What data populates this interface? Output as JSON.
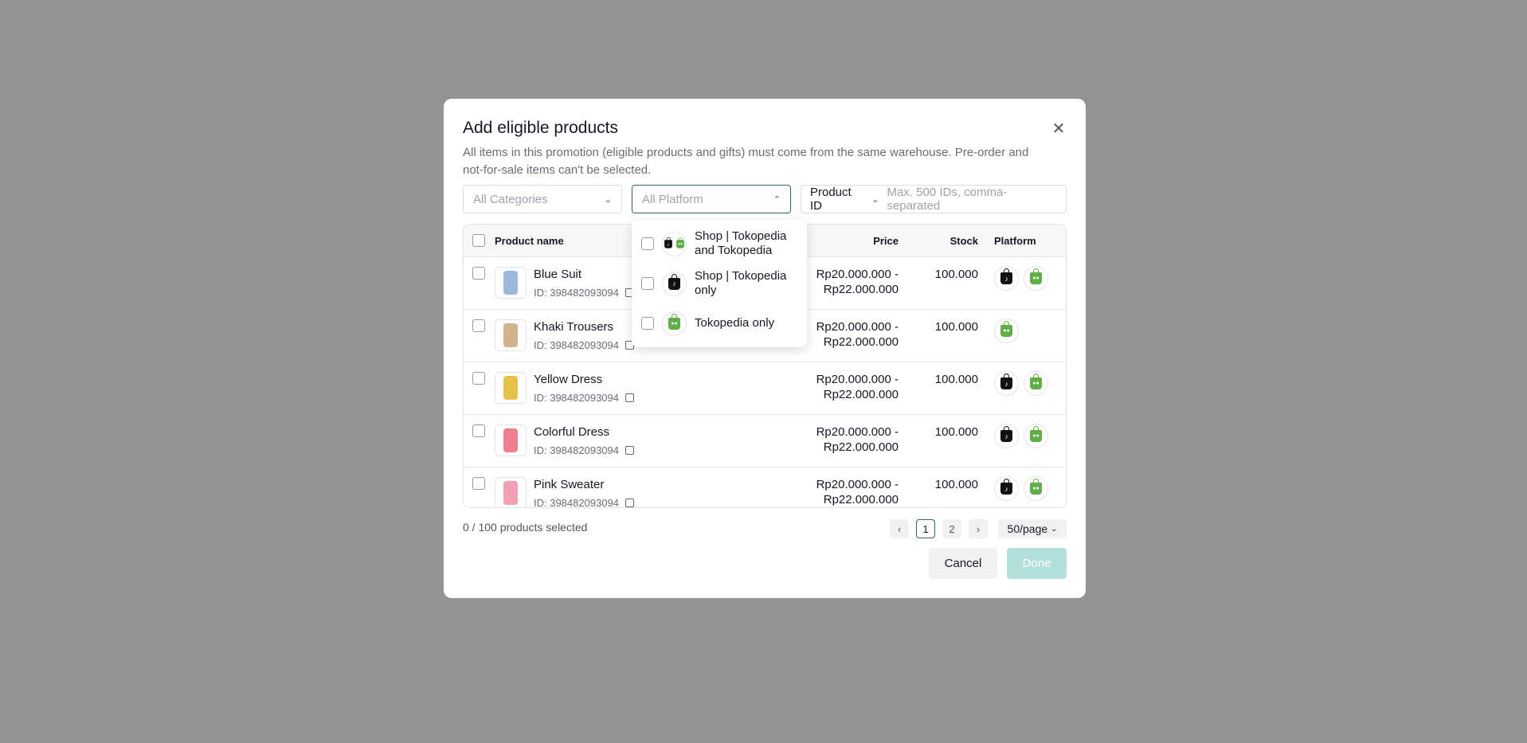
{
  "modal": {
    "title": "Add eligible products",
    "subtitle": "All items in this promotion (eligible products and gifts) must come from the same warehouse. Pre-order and not-for-sale items can't be selected.",
    "close_icon": "close-icon"
  },
  "filters": {
    "categories_placeholder": "All Categories",
    "platform_placeholder": "All Platform",
    "id_type": "Product ID",
    "id_placeholder": "Max. 500 IDs, comma-separated"
  },
  "platform_dropdown": {
    "options": [
      {
        "label": "Shop | Tokopedia and Tokopedia",
        "icons": [
          "tiktok-shop",
          "tokopedia"
        ]
      },
      {
        "label": "Shop | Tokopedia only",
        "icons": [
          "tiktok-shop"
        ]
      },
      {
        "label": "Tokopedia only",
        "icons": [
          "tokopedia"
        ]
      }
    ]
  },
  "table": {
    "headers": {
      "name": "Product name",
      "price": "Price",
      "stock": "Stock",
      "platform": "Platform"
    },
    "rows": [
      {
        "name": "Blue Suit",
        "id": "ID: 398482093094",
        "price": "Rp20.000.000 - Rp22.000.000",
        "stock": "100.000",
        "platforms": [
          "tiktok-shop",
          "tokopedia"
        ]
      },
      {
        "name": "Khaki Trousers",
        "id": "ID: 398482093094",
        "price": "Rp20.000.000 - Rp22.000.000",
        "stock": "100.000",
        "platforms": [
          "tokopedia"
        ]
      },
      {
        "name": "Yellow Dress",
        "id": "ID: 398482093094",
        "price": "Rp20.000.000 - Rp22.000.000",
        "stock": "100.000",
        "platforms": [
          "tiktok-shop",
          "tokopedia"
        ]
      },
      {
        "name": "Colorful Dress",
        "id": "ID: 398482093094",
        "price": "Rp20.000.000 - Rp22.000.000",
        "stock": "100.000",
        "platforms": [
          "tiktok-shop",
          "tokopedia"
        ]
      },
      {
        "name": "Pink Sweater",
        "id": "ID: 398482093094",
        "price": "Rp20.000.000 - Rp22.000.000",
        "stock": "100.000",
        "platforms": [
          "tiktok-shop",
          "tokopedia"
        ]
      }
    ]
  },
  "footer": {
    "selected": "0 / 100 products selected",
    "pages": [
      "1",
      "2"
    ],
    "current_page": "1",
    "page_size": "50/page",
    "cancel": "Cancel",
    "done": "Done"
  },
  "colors": {
    "accent": "#2f6b68",
    "done_disabled": "#b3dfdc",
    "overlay": "#939393",
    "tokopedia": "#5fae46"
  }
}
